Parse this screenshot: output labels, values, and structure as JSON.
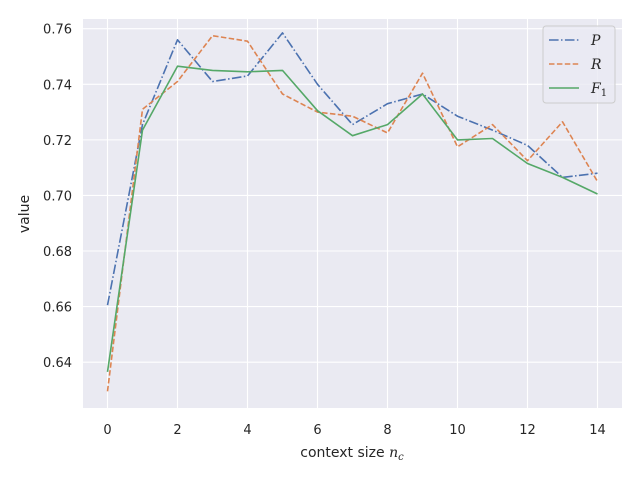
{
  "chart_data": {
    "type": "line",
    "title": "",
    "xlabel": "context size",
    "xlabel_symbol": "n",
    "xlabel_subscript": "c",
    "ylabel": "value",
    "xlim": [
      -0.7,
      14.7
    ],
    "ylim": [
      0.6235,
      0.7635
    ],
    "xticks": [
      0,
      2,
      4,
      6,
      8,
      10,
      12,
      14
    ],
    "yticks": [
      0.64,
      0.66,
      0.68,
      0.7,
      0.72,
      0.74,
      0.76
    ],
    "grid": true,
    "legend_position": "top-right",
    "x": [
      0,
      1,
      2,
      3,
      4,
      5,
      6,
      7,
      8,
      9,
      10,
      11,
      12,
      13,
      14
    ],
    "series": [
      {
        "name": "P",
        "name_subscript": "",
        "color": "#4c72b0",
        "linestyle": "dashdot",
        "values": [
          0.6605,
          0.7255,
          0.756,
          0.741,
          0.743,
          0.7585,
          0.74,
          0.7255,
          0.733,
          0.7365,
          0.7285,
          0.7235,
          0.718,
          0.7065,
          0.708
        ]
      },
      {
        "name": "R",
        "name_subscript": "",
        "color": "#dd8452",
        "linestyle": "dashed",
        "values": [
          0.6295,
          0.731,
          0.741,
          0.7575,
          0.7555,
          0.7365,
          0.73,
          0.7285,
          0.7225,
          0.744,
          0.7175,
          0.7255,
          0.7125,
          0.7265,
          0.705
        ]
      },
      {
        "name": "F",
        "name_subscript": "1",
        "color": "#55a868",
        "linestyle": "solid",
        "values": [
          0.6365,
          0.7235,
          0.7465,
          0.745,
          0.7445,
          0.745,
          0.7305,
          0.7215,
          0.7255,
          0.7365,
          0.72,
          0.7205,
          0.7115,
          0.7065,
          0.7005
        ]
      }
    ]
  }
}
